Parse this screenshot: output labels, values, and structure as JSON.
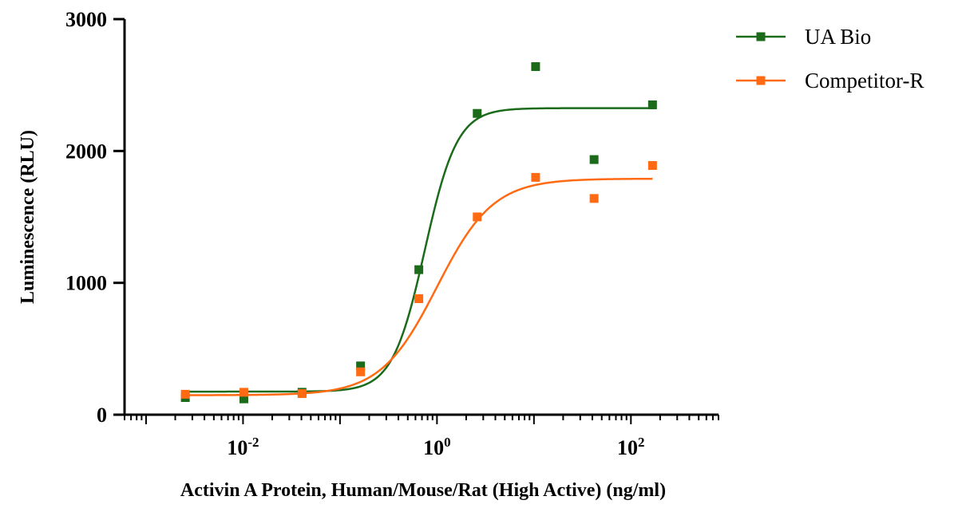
{
  "chart_data": {
    "type": "scatter",
    "xlabel": "Activin A Protein, Human/Mouse/Rat (High Active) (ng/ml)",
    "ylabel": "Luminescence (RLU)",
    "xscale": "log",
    "xlim": [
      0.0006,
      800
    ],
    "ylim": [
      0,
      3000
    ],
    "yticks": [
      0,
      1000,
      2000,
      3000
    ],
    "xticks": [
      0.01,
      1,
      100
    ],
    "xtick_labels": [
      {
        "base": "10",
        "exp": "-2"
      },
      {
        "base": "10",
        "exp": "0"
      },
      {
        "base": "10",
        "exp": "2"
      }
    ],
    "legend_position": "top-right",
    "series": [
      {
        "name": "UA Bio",
        "color": "#1b6b1b",
        "marker": "square",
        "x": [
          0.00254,
          0.0102,
          0.0406,
          0.163,
          0.65,
          2.6,
          10.4,
          41.7,
          167
        ],
        "y": [
          130,
          120,
          170,
          370,
          1100,
          2285,
          2640,
          1935,
          2350
        ],
        "fit": {
          "model": "4PL",
          "bottom": 175,
          "top": 2325,
          "ec50": 0.75,
          "hill": 2.6
        }
      },
      {
        "name": "Competitor-R",
        "color": "#ff6a13",
        "marker": "square",
        "x": [
          0.00254,
          0.0102,
          0.0406,
          0.163,
          0.65,
          2.6,
          10.4,
          41.7,
          167
        ],
        "y": [
          155,
          170,
          160,
          325,
          880,
          1500,
          1800,
          1640,
          1890
        ],
        "fit": {
          "model": "4PL",
          "bottom": 148,
          "top": 1790,
          "ec50": 1.0,
          "hill": 1.5
        }
      }
    ]
  }
}
